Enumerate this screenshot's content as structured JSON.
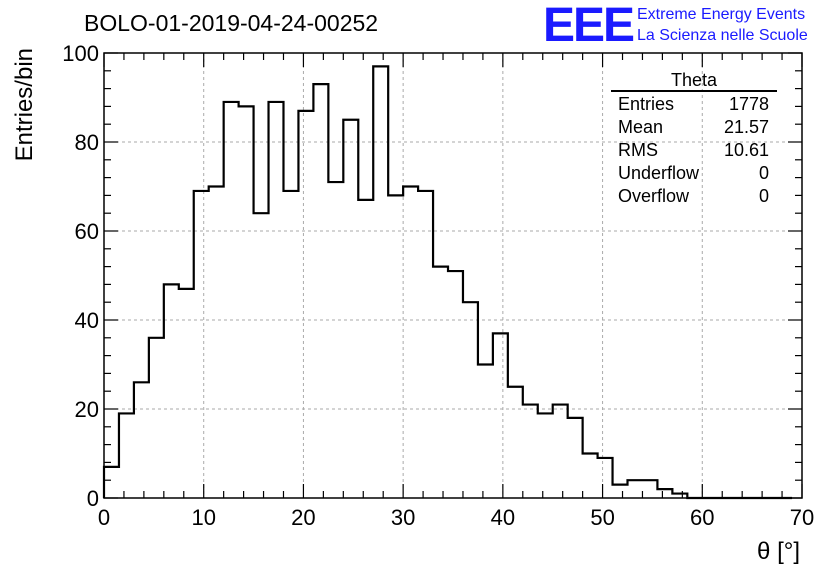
{
  "header": {
    "title": "BOLO-01-2019-04-24-00252",
    "logo_text": "EEE",
    "logo_line1": "Extreme Energy Events",
    "logo_line2": "La Scienza nelle Scuole",
    "logo_color": "#1a1aff"
  },
  "stats": {
    "title": "Theta",
    "rows": [
      {
        "label": "Entries",
        "value": "1778"
      },
      {
        "label": "Mean",
        "value": "21.57"
      },
      {
        "label": "RMS",
        "value": "10.61"
      },
      {
        "label": "Underflow",
        "value": "0"
      },
      {
        "label": "Overflow",
        "value": "0"
      }
    ]
  },
  "chart_data": {
    "type": "bar",
    "histogram": true,
    "xlabel": "θ [°]",
    "ylabel": "Entries/bin",
    "xlim": [
      0,
      70
    ],
    "ylim": [
      0,
      100
    ],
    "grid": true,
    "xticks": [
      0,
      10,
      20,
      30,
      40,
      50,
      60,
      70
    ],
    "yticks": [
      0,
      20,
      40,
      60,
      80,
      100
    ],
    "bin_width": 1.5,
    "bin_edges_start": 0,
    "values": [
      7,
      19,
      26,
      36,
      48,
      47,
      69,
      70,
      89,
      88,
      64,
      89,
      69,
      87,
      93,
      71,
      85,
      67,
      97,
      68,
      70,
      69,
      52,
      51,
      44,
      30,
      37,
      25,
      21,
      19,
      21,
      18,
      10,
      9,
      3,
      4,
      4,
      2,
      1,
      0,
      0,
      0,
      0,
      0,
      0,
      0
    ],
    "line_color": "#000000"
  }
}
